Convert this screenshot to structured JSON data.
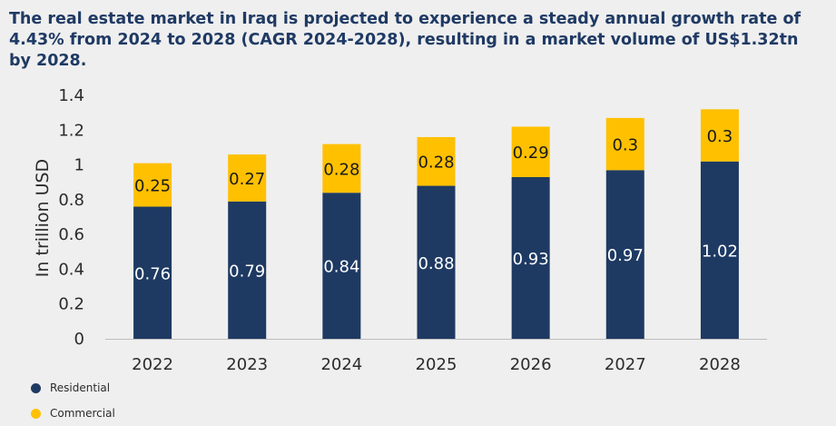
{
  "colors": {
    "title": "#1f3a64",
    "residential": "#1e3a63",
    "commercial": "#ffc000",
    "axis": "#bdbdbd",
    "text": "#2b2b2b"
  },
  "chart_data": {
    "type": "bar",
    "stacked": true,
    "title": "The real estate market in Iraq is projected to experience a steady annual growth rate of 4.43% from 2024 to 2028 (CAGR 2024-2028), resulting in a market volume of US$1.32tn by 2028.",
    "xlabel": "",
    "ylabel": "In trillion USD",
    "categories": [
      "2022",
      "2023",
      "2024",
      "2025",
      "2026",
      "2027",
      "2028"
    ],
    "series": [
      {
        "name": "Residential",
        "values": [
          0.76,
          0.79,
          0.84,
          0.88,
          0.93,
          0.97,
          1.02
        ]
      },
      {
        "name": "Commercial",
        "values": [
          0.25,
          0.27,
          0.28,
          0.28,
          0.29,
          0.3,
          0.3
        ]
      }
    ],
    "ylim": [
      0,
      1.4
    ],
    "yticks": [
      "0",
      "0.2",
      "0.4",
      "0.6",
      "0.8",
      "1",
      "1.2",
      "1.4"
    ],
    "grid": false,
    "legend_position": "bottom-left"
  }
}
